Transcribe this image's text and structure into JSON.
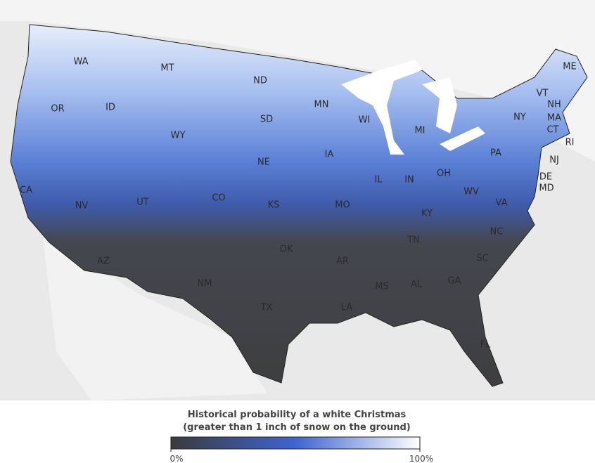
{
  "map": {
    "states": [
      "WA",
      "MT",
      "ND",
      "OR",
      "ID",
      "MN",
      "SD",
      "WY",
      "WI",
      "MI",
      "ME",
      "VT",
      "NH",
      "MA",
      "CT",
      "RI",
      "NY",
      "PA",
      "NJ",
      "DE",
      "MD",
      "IA",
      "NE",
      "IL",
      "IN",
      "OH",
      "WV",
      "VA",
      "CA",
      "NV",
      "UT",
      "CO",
      "KS",
      "MO",
      "KY",
      "NC",
      "TN",
      "OK",
      "AR",
      "SC",
      "AZ",
      "NM",
      "MS",
      "AL",
      "GA",
      "TX",
      "LA",
      "FL"
    ],
    "legend": {
      "title": [
        "Historical probability of a white Christmas",
        "(greater than 1 inch of snow on the ground)"
      ],
      "range": [
        0,
        100
      ],
      "ticks": [
        {
          "value": 0,
          "label": "0%"
        },
        {
          "value": 100,
          "label": "100%"
        }
      ]
    }
  }
}
